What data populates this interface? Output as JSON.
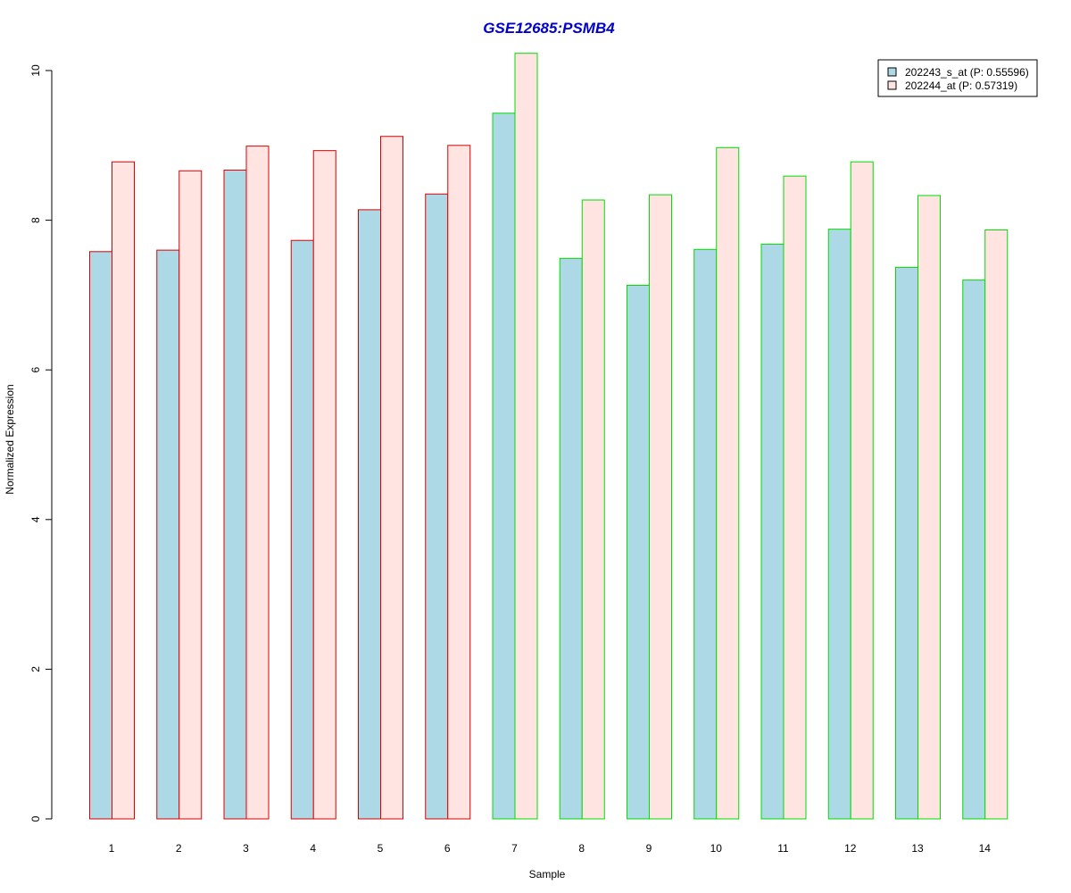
{
  "chart_data": {
    "type": "bar",
    "title": "GSE12685:PSMB4",
    "xlabel": "Sample",
    "ylabel": "Normalized Expression",
    "ylim": [
      0,
      10
    ],
    "y_ticks": [
      0,
      2,
      4,
      6,
      8,
      10
    ],
    "categories": [
      "1",
      "2",
      "3",
      "4",
      "5",
      "6",
      "7",
      "8",
      "9",
      "10",
      "11",
      "12",
      "13",
      "14"
    ],
    "series": [
      {
        "name": "202243_s_at (P: 0.55596)",
        "fill": "#add8e6",
        "values": [
          7.58,
          7.6,
          8.67,
          7.73,
          8.14,
          8.35,
          9.43,
          7.49,
          7.13,
          7.61,
          7.68,
          7.88,
          7.37,
          7.2
        ]
      },
      {
        "name": "202244_at (P: 0.57319)",
        "fill": "#ffe4e1",
        "values": [
          8.78,
          8.66,
          8.99,
          8.93,
          9.12,
          9.0,
          10.23,
          8.27,
          8.34,
          8.97,
          8.59,
          8.78,
          8.33,
          7.87
        ]
      }
    ],
    "group_border_colors": [
      "#dd0000",
      "#dd0000",
      "#dd0000",
      "#dd0000",
      "#dd0000",
      "#dd0000",
      "#00dd00",
      "#00dd00",
      "#00dd00",
      "#00dd00",
      "#00dd00",
      "#00dd00",
      "#00dd00",
      "#00dd00"
    ],
    "legend_position": "top-right",
    "grid": false
  }
}
